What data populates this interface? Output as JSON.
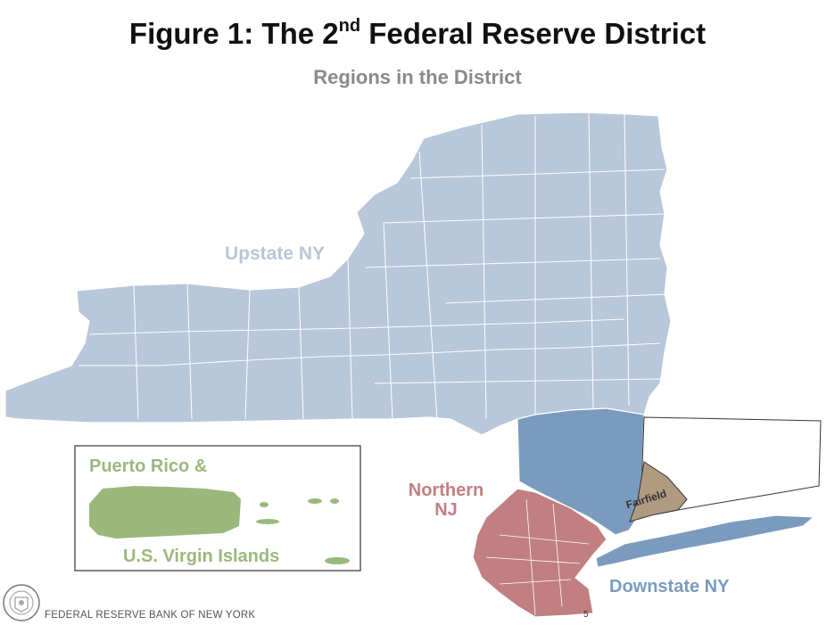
{
  "title": {
    "prefix": "Figure 1: The 2",
    "superscript": "nd",
    "suffix": " Federal Reserve District"
  },
  "subtitle": "Regions in the District",
  "regions": [
    {
      "key": "upstate",
      "label": "Upstate NY",
      "color": "#b8c7d9"
    },
    {
      "key": "northern_nj",
      "label": "Northern\nNJ",
      "label_lines": [
        "Northern",
        "NJ"
      ],
      "color": "#c17f81"
    },
    {
      "key": "fairfield",
      "label": "Fairfield",
      "color": "#b09a80"
    },
    {
      "key": "downstate",
      "label": "Downstate NY",
      "color": "#7a9bbd"
    },
    {
      "key": "puerto_rico_vi",
      "label_lines": [
        "Puerto Rico &",
        "U.S. Virgin Islands"
      ],
      "color": "#9ab87c"
    }
  ],
  "label_colors": {
    "upstate": "#b8c7d9",
    "northern_nj": "#c17f81",
    "downstate": "#7a9bbd",
    "puerto_rico_vi": "#9ab87c",
    "fairfield": "#333333"
  },
  "footer": "FEDERAL RESERVE BANK OF NEW YORK",
  "page_number": "5",
  "seal_icon": "federal-reserve-seal-icon"
}
